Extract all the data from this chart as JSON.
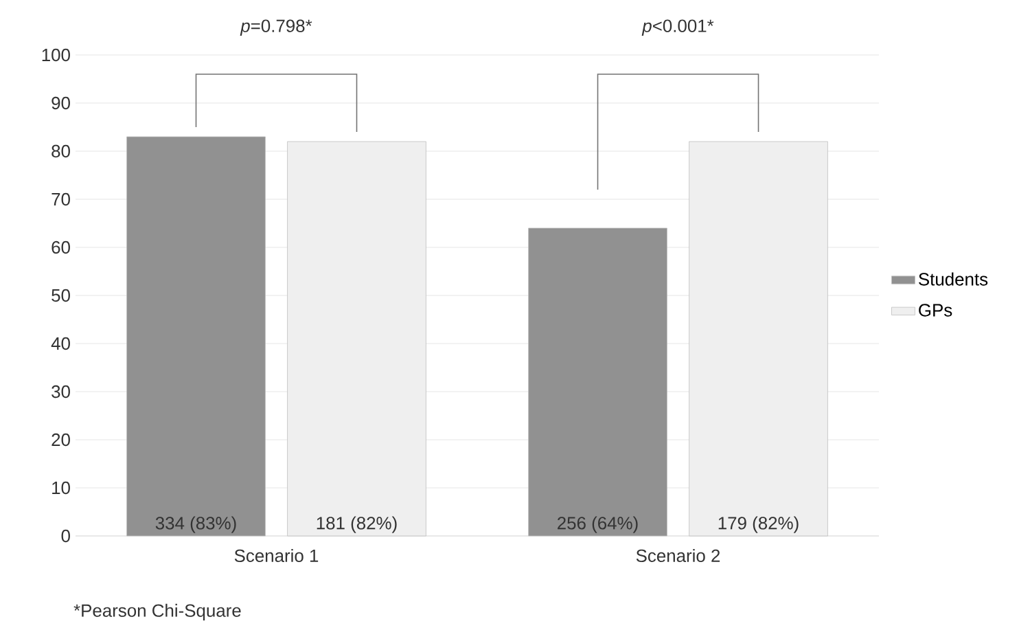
{
  "chart_data": {
    "type": "bar",
    "categories": [
      "Scenario 1",
      "Scenario 2"
    ],
    "series": [
      {
        "name": "Students",
        "color": "#919191",
        "values": [
          83,
          64
        ],
        "value_labels": [
          "334 (83%)",
          "256 (64%)"
        ]
      },
      {
        "name": "GPs",
        "color": "#efefef",
        "values": [
          82,
          82
        ],
        "value_labels": [
          "181 (82%)",
          "179 (82%)"
        ]
      }
    ],
    "ylim": [
      0,
      100
    ],
    "yticks": [
      0,
      10,
      20,
      30,
      40,
      50,
      60,
      70,
      80,
      90,
      100
    ],
    "grid": "y",
    "legend": "right",
    "annotations": [
      "*p*=0.798*",
      "*p*<0.001*",
      "*Pearson Chi-Square"
    ]
  }
}
